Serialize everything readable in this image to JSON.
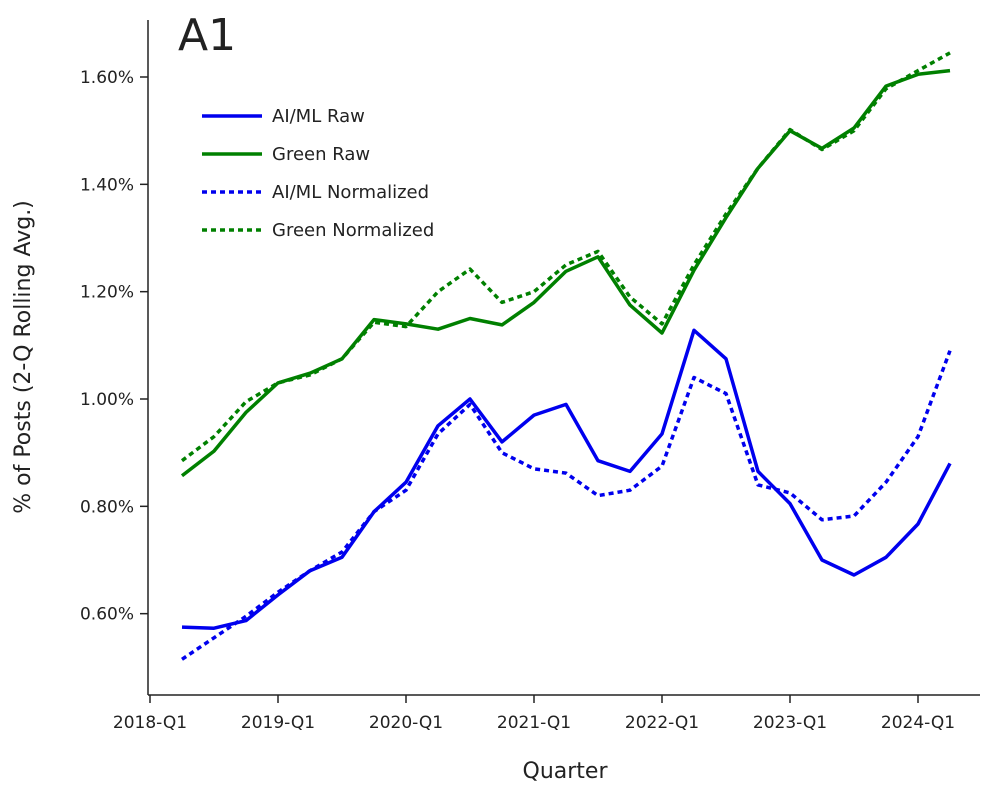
{
  "chart_data": {
    "type": "line",
    "title": "A1",
    "xlabel": "Quarter",
    "ylabel": "% of Posts (2-Q Rolling Avg.)",
    "x": [
      "2018-Q2",
      "2018-Q3",
      "2018-Q4",
      "2019-Q1",
      "2019-Q2",
      "2019-Q3",
      "2019-Q4",
      "2020-Q1",
      "2020-Q2",
      "2020-Q3",
      "2020-Q4",
      "2021-Q1",
      "2021-Q2",
      "2021-Q3",
      "2021-Q4",
      "2022-Q1",
      "2022-Q2",
      "2022-Q3",
      "2022-Q4",
      "2023-Q1",
      "2023-Q2",
      "2023-Q3",
      "2023-Q4",
      "2024-Q1",
      "2024-Q2"
    ],
    "xticks": [
      "2018-Q1",
      "2019-Q1",
      "2020-Q1",
      "2021-Q1",
      "2022-Q1",
      "2023-Q1",
      "2024-Q1"
    ],
    "yticks": [
      0.6,
      0.8,
      1.0,
      1.2,
      1.4,
      1.6
    ],
    "ytick_labels": [
      "0.60%",
      "0.80%",
      "1.00%",
      "1.20%",
      "1.40%",
      "1.60%"
    ],
    "ylim": [
      0.49,
      1.71
    ],
    "grid": false,
    "legend_position": "top-left",
    "series": [
      {
        "name": "AI/ML Raw",
        "color": "#0000ee",
        "style": "solid",
        "values": [
          0.575,
          0.573,
          0.587,
          0.635,
          0.68,
          0.705,
          0.79,
          0.845,
          0.95,
          1.0,
          0.92,
          0.97,
          0.99,
          0.885,
          0.865,
          0.935,
          1.128,
          1.075,
          0.865,
          0.805,
          0.7,
          0.672,
          0.705,
          0.767,
          0.88
        ]
      },
      {
        "name": "Green Raw",
        "color": "#008000",
        "style": "solid",
        "values": [
          0.857,
          0.903,
          0.975,
          1.03,
          1.048,
          1.075,
          1.148,
          1.14,
          1.13,
          1.15,
          1.138,
          1.18,
          1.238,
          1.265,
          1.175,
          1.123,
          1.24,
          1.338,
          1.43,
          1.5,
          1.467,
          1.505,
          1.583,
          1.605,
          1.612
        ]
      },
      {
        "name": "AI/ML Normalized",
        "color": "#0000ee",
        "style": "dotted",
        "values": [
          0.515,
          0.555,
          0.595,
          0.64,
          0.68,
          0.715,
          0.79,
          0.83,
          0.935,
          0.99,
          0.9,
          0.87,
          0.862,
          0.82,
          0.83,
          0.875,
          1.04,
          1.01,
          0.84,
          0.825,
          0.775,
          0.782,
          0.845,
          0.93,
          1.09
        ]
      },
      {
        "name": "Green Normalized",
        "color": "#008000",
        "style": "dotted",
        "values": [
          0.885,
          0.93,
          0.995,
          1.03,
          1.045,
          1.075,
          1.143,
          1.135,
          1.2,
          1.242,
          1.18,
          1.2,
          1.25,
          1.275,
          1.19,
          1.14,
          1.25,
          1.345,
          1.43,
          1.502,
          1.465,
          1.5,
          1.578,
          1.612,
          1.645
        ]
      }
    ]
  }
}
